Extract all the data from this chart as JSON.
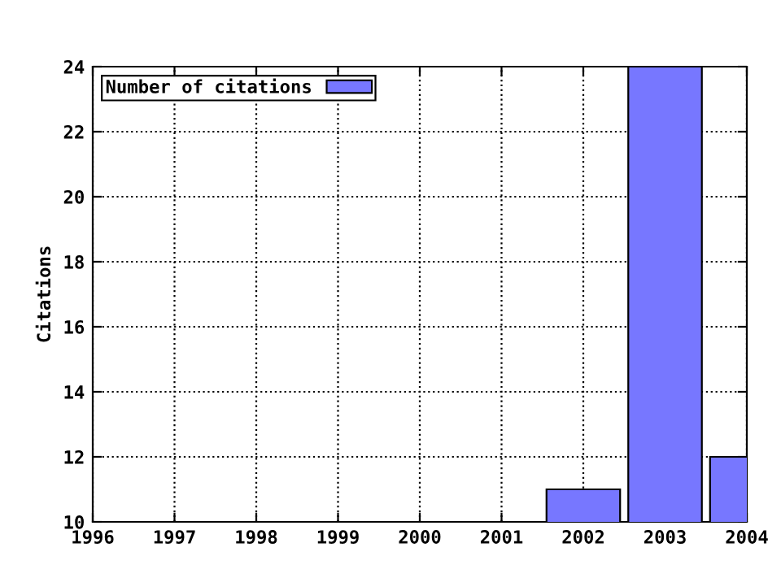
{
  "chart_data": {
    "type": "bar",
    "ylabel": "Citations",
    "x": [
      2002,
      2003,
      2004
    ],
    "series": [
      {
        "name": "Number of citations",
        "color": "#7777ff",
        "values": [
          11,
          24,
          12
        ]
      }
    ],
    "xlim": [
      1996,
      2004
    ],
    "xticks": [
      1996,
      1997,
      1998,
      1999,
      2000,
      2001,
      2002,
      2003,
      2004
    ],
    "ylim": [
      10,
      24
    ],
    "yticks": [
      10,
      12,
      14,
      16,
      18,
      20,
      22,
      24
    ],
    "grid": true,
    "line_style": "dotted",
    "legend": "top left"
  }
}
